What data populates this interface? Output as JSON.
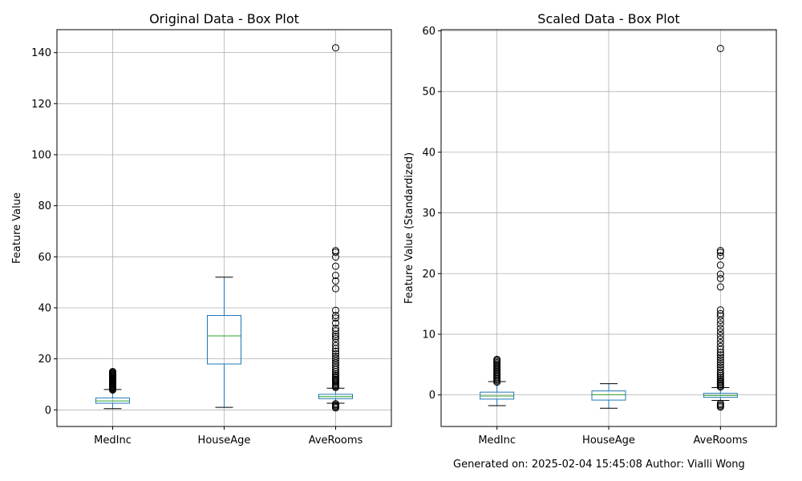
{
  "footer": {
    "generated_label": "Generated on:",
    "timestamp": "2025-02-04 15:45:08",
    "author_label": "Author:",
    "author": "Vialli Wong"
  },
  "colors": {
    "box": "#1f77b4",
    "median": "#2ca02c",
    "grid": "#b0b0b0",
    "axes": "#000000"
  },
  "chart_data": [
    {
      "type": "box",
      "title": "Original Data - Box Plot",
      "xlabel": "",
      "ylabel": "Feature Value",
      "ylim": [
        -6.5,
        149
      ],
      "yticks": [
        0,
        20,
        40,
        60,
        80,
        100,
        120,
        140
      ],
      "grid": true,
      "categories": [
        "MedInc",
        "HouseAge",
        "AveRooms"
      ],
      "boxes": [
        {
          "label": "MedInc",
          "whislo": 0.5,
          "q1": 2.6,
          "median": 3.5,
          "q3": 4.7,
          "whishi": 8.0,
          "fliers": [
            7.8,
            8.1,
            8.4,
            8.7,
            9.0,
            9.3,
            9.6,
            9.9,
            10.2,
            10.5,
            10.8,
            11.1,
            11.4,
            11.7,
            12.0,
            12.3,
            12.6,
            12.9,
            13.2,
            13.5,
            13.8,
            14.1,
            14.4,
            14.7,
            15.0
          ]
        },
        {
          "label": "HouseAge",
          "whislo": 1,
          "q1": 18,
          "median": 29,
          "q3": 37,
          "whishi": 52,
          "fliers": []
        },
        {
          "label": "AveRooms",
          "whislo": 2.6,
          "q1": 4.4,
          "median": 5.2,
          "q3": 6.1,
          "whishi": 8.5,
          "fliers": [
            0.8,
            1.2,
            1.6,
            2.0,
            2.4,
            8.8,
            9.2,
            9.6,
            10.0,
            10.5,
            11.0,
            11.5,
            12.0,
            12.5,
            13.0,
            13.6,
            14.2,
            15.0,
            15.8,
            16.6,
            17.5,
            18.4,
            19.3,
            20.2,
            21.0,
            22.0,
            23.0,
            24.0,
            25.2,
            26.5,
            28.0,
            28.8,
            29.6,
            31.0,
            32.0,
            34.0,
            36.0,
            37.0,
            39.0,
            47.5,
            50.5,
            52.7,
            56.3,
            59.9,
            61.8,
            62.4,
            141.9
          ]
        }
      ]
    },
    {
      "type": "box",
      "title": "Scaled Data - Box Plot",
      "xlabel": "",
      "ylabel": "Feature Value (Standardized)",
      "ylim": [
        -5.2,
        60.2
      ],
      "yticks": [
        0,
        10,
        20,
        30,
        40,
        50,
        60
      ],
      "grid": true,
      "categories": [
        "MedInc",
        "HouseAge",
        "AveRooms"
      ],
      "boxes": [
        {
          "label": "MedInc",
          "whislo": -1.77,
          "q1": -0.69,
          "median": -0.18,
          "q3": 0.46,
          "whishi": 2.2,
          "fliers": [
            2.1,
            2.3,
            2.5,
            2.7,
            2.9,
            3.1,
            3.3,
            3.5,
            3.7,
            3.9,
            4.1,
            4.3,
            4.5,
            4.7,
            4.9,
            5.1,
            5.3,
            5.5,
            5.7,
            5.86
          ]
        },
        {
          "label": "HouseAge",
          "whislo": -2.2,
          "q1": -0.85,
          "median": 0.03,
          "q3": 0.66,
          "whishi": 1.86,
          "fliers": []
        },
        {
          "label": "AveRooms",
          "whislo": -0.9,
          "q1": -0.4,
          "median": -0.08,
          "q3": 0.27,
          "whishi": 1.2,
          "fliers": [
            -2.0,
            -1.8,
            -1.6,
            -1.4,
            1.3,
            1.5,
            1.7,
            1.9,
            2.1,
            2.3,
            2.6,
            2.9,
            3.2,
            3.5,
            3.8,
            4.2,
            4.6,
            5.0,
            5.4,
            5.8,
            6.2,
            6.6,
            7.0,
            7.5,
            8.0,
            8.6,
            9.2,
            9.8,
            10.4,
            11.0,
            11.7,
            12.3,
            13.0,
            13.4,
            14.0,
            17.8,
            19.2,
            19.9,
            21.4,
            22.9,
            23.5,
            23.8,
            57.1
          ]
        }
      ]
    }
  ]
}
